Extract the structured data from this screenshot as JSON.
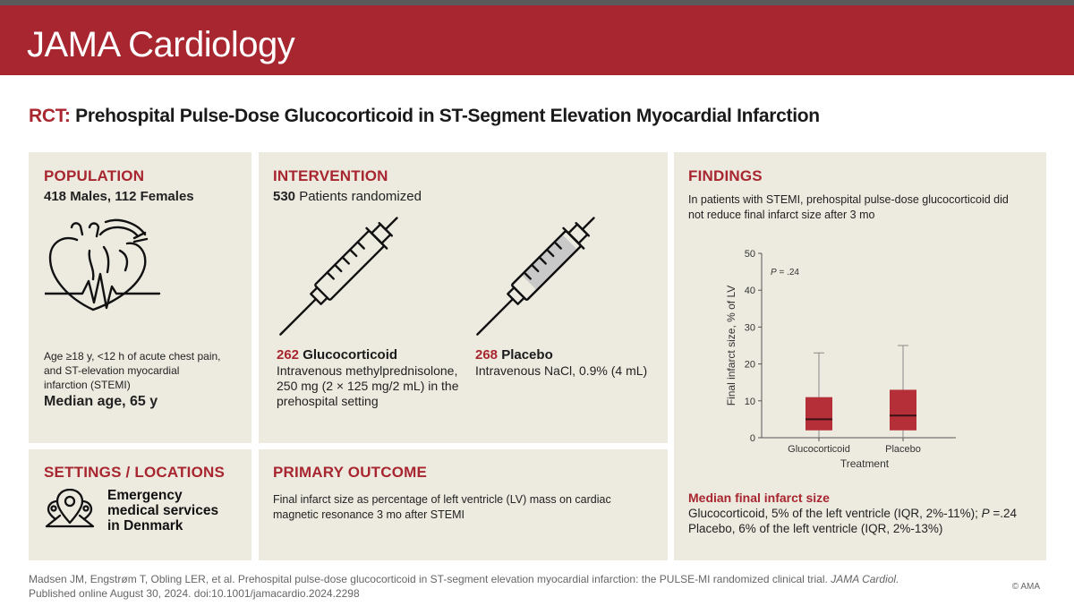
{
  "header": {
    "journal": "JAMA Cardiology"
  },
  "title": {
    "prefix": "RCT:",
    "text": "Prehospital Pulse-Dose Glucocorticoid in ST-Segment Elevation Myocardial Infarction"
  },
  "population": {
    "heading": "POPULATION",
    "counts": "418 Males, 112 Females",
    "criteria": [
      "Age ≥18 y, <12 h of acute chest pain,",
      "and ST-elevation myocardial",
      "infarction (STEMI)"
    ],
    "median_age": "Median age, 65 y"
  },
  "intervention": {
    "heading": "INTERVENTION",
    "randomized_n": "530",
    "randomized_label": "Patients randomized",
    "arm1": {
      "n": "262",
      "name": "Glucocorticoid",
      "desc": [
        "Intravenous methylprednisolone,",
        "250 mg (2 × 125 mg/2 mL) in the",
        "prehospital setting"
      ]
    },
    "arm2": {
      "n": "268",
      "name": "Placebo",
      "desc": [
        "Intravenous NaCl, 0.9% (4 mL)"
      ]
    }
  },
  "settings": {
    "heading": "SETTINGS / LOCATIONS",
    "lines": [
      "Emergency",
      "medical services",
      "in Denmark"
    ]
  },
  "outcome": {
    "heading": "PRIMARY OUTCOME",
    "lines": [
      "Final infarct size as percentage of left ventricle (LV) mass on cardiac",
      "magnetic resonance 3 mo after STEMI"
    ]
  },
  "findings": {
    "heading": "FINDINGS",
    "lines": [
      "In patients with STEMI, prehospital pulse-dose glucocorticoid did",
      "not reduce final infarct size after 3 mo"
    ],
    "median_heading": "Median final infarct size",
    "result1_text": "Glucocorticoid, 5% of the left ventricle (IQR, 2%-11%);",
    "result1_p_label": "P",
    "result1_p_value": " =.24",
    "result2_text": "Placebo, 6% of the left ventricle (IQR, 2%-13%)"
  },
  "chart_data": {
    "type": "box",
    "categories": [
      "Glucocorticoid",
      "Placebo"
    ],
    "boxes": [
      {
        "name": "Glucocorticoid",
        "min": 0,
        "q1": 2,
        "median": 5,
        "q3": 11,
        "max": 23
      },
      {
        "name": "Placebo",
        "min": 0,
        "q1": 2,
        "median": 6,
        "q3": 13,
        "max": 25
      }
    ],
    "ylim": [
      0,
      50
    ],
    "yticks": [
      "0",
      "10",
      "20",
      "30",
      "40",
      "50"
    ],
    "ylabel": "Final infarct size, % of LV",
    "xlabel": "Treatment",
    "annotation_label": "P",
    "annotation_value": " = .24",
    "colors": {
      "box": "#b52f38",
      "median": "#3a1215",
      "whisker": "#8a8a8a"
    }
  },
  "citation": {
    "line1_text": "Madsen JM, Engstrøm T, Obling LER, et al. Prehospital pulse-dose glucocorticoid in ST-segment elevation myocardial infarction: the PULSE-MI randomized clinical trial. ",
    "line1_journal": "JAMA Cardiol.",
    "line2": "Published online August 30, 2024. doi:10.1001/jamacardio.2024.2298"
  },
  "copyright": "© AMA",
  "colors": {
    "brand": "#a8262f",
    "panel": "#edeae0"
  },
  "icons": [
    "heart-ecg-icon",
    "syringe-icon",
    "location-pin-icon"
  ]
}
